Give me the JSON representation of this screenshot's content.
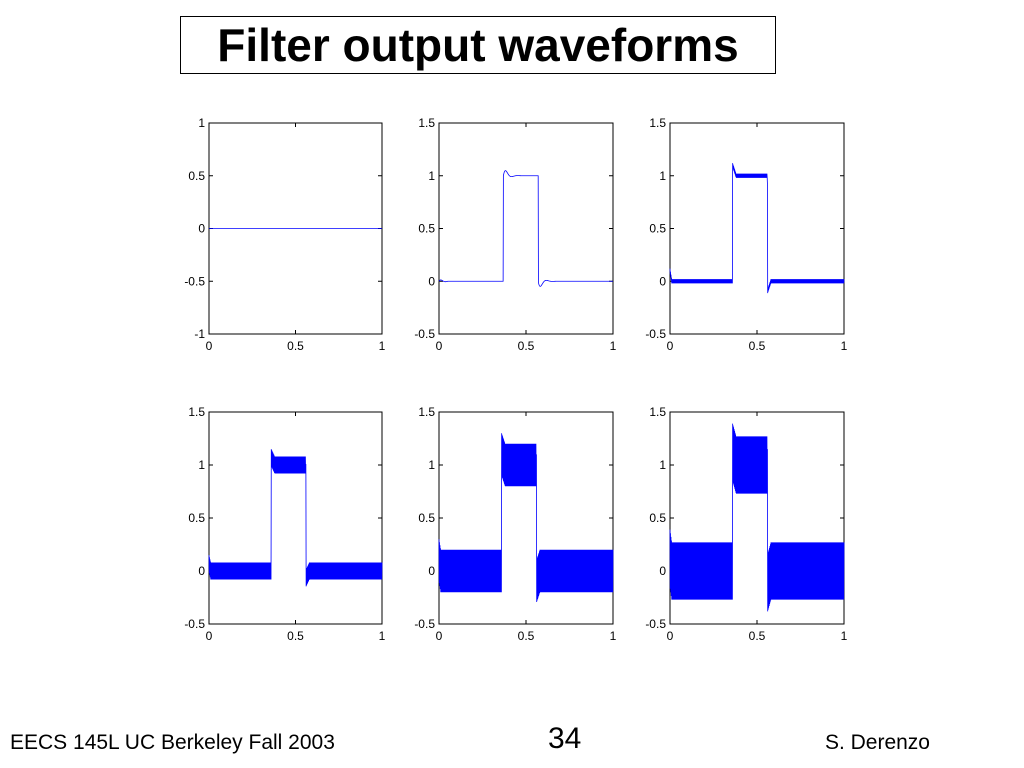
{
  "slide": {
    "title": "Filter output waveforms",
    "footer_left": "EECS 145L UC Berkeley Fall 2003",
    "page_number": "34",
    "footer_right": "S. Derenzo"
  },
  "colors": {
    "trace": "#0000ff",
    "axes": "#000000"
  },
  "chart_data": [
    {
      "type": "line",
      "title": "",
      "xlabel": "",
      "ylabel": "",
      "xlim": [
        0,
        1
      ],
      "ylim": [
        -1,
        1
      ],
      "xticks": [
        "0",
        "0.5",
        "1"
      ],
      "yticks": [
        "1",
        "0.5",
        "0",
        "-0.5",
        "-1"
      ],
      "series": [
        {
          "x": [
            0,
            1
          ],
          "y": [
            0,
            0
          ]
        }
      ],
      "pulse": {
        "start": 0,
        "end": 0,
        "amplitude": 0,
        "ripple": 0,
        "overshoot": 0,
        "ringing": false
      }
    },
    {
      "type": "line",
      "title": "",
      "xlabel": "",
      "ylabel": "",
      "xlim": [
        0,
        1
      ],
      "ylim": [
        -0.5,
        1.5
      ],
      "xticks": [
        "0",
        "0.5",
        "1"
      ],
      "yticks": [
        "1.5",
        "1",
        "0.5",
        "0",
        "-0.5"
      ],
      "pulse": {
        "start": 0.37,
        "end": 0.57,
        "amplitude": 1,
        "ripple": 0,
        "overshoot": 0.1,
        "ringing": true
      }
    },
    {
      "type": "line",
      "title": "",
      "xlabel": "",
      "ylabel": "",
      "xlim": [
        0,
        1
      ],
      "ylim": [
        -0.5,
        1.5
      ],
      "xticks": [
        "0",
        "0.5",
        "1"
      ],
      "yticks": [
        "1.5",
        "1",
        "0.5",
        "0",
        "-0.5"
      ],
      "pulse": {
        "start": 0.36,
        "end": 0.56,
        "amplitude": 1,
        "ripple": 0.02,
        "overshoot": 0.1,
        "ringing": false
      }
    },
    {
      "type": "line",
      "title": "",
      "xlabel": "",
      "ylabel": "",
      "xlim": [
        0,
        1
      ],
      "ylim": [
        -0.5,
        1.5
      ],
      "xticks": [
        "0",
        "0.5",
        "1"
      ],
      "yticks": [
        "1.5",
        "1",
        "0.5",
        "0",
        "-0.5"
      ],
      "pulse": {
        "start": 0.36,
        "end": 0.56,
        "amplitude": 1,
        "ripple": 0.08,
        "overshoot": 0.07,
        "ringing": false
      }
    },
    {
      "type": "line",
      "title": "",
      "xlabel": "",
      "ylabel": "",
      "xlim": [
        0,
        1
      ],
      "ylim": [
        -0.5,
        1.5
      ],
      "xticks": [
        "0",
        "0.5",
        "1"
      ],
      "yticks": [
        "1.5",
        "1",
        "0.5",
        "0",
        "-0.5"
      ],
      "pulse": {
        "start": 0.36,
        "end": 0.56,
        "amplitude": 1,
        "ripple": 0.2,
        "overshoot": 0.1,
        "ringing": false
      }
    },
    {
      "type": "line",
      "title": "",
      "xlabel": "",
      "ylabel": "",
      "xlim": [
        0,
        1
      ],
      "ylim": [
        -0.5,
        1.5
      ],
      "xticks": [
        "0",
        "0.5",
        "1"
      ],
      "yticks": [
        "1.5",
        "1",
        "0.5",
        "0",
        "-0.5"
      ],
      "pulse": {
        "start": 0.36,
        "end": 0.56,
        "amplitude": 1,
        "ripple": 0.27,
        "overshoot": 0.12,
        "ringing": false
      }
    }
  ]
}
